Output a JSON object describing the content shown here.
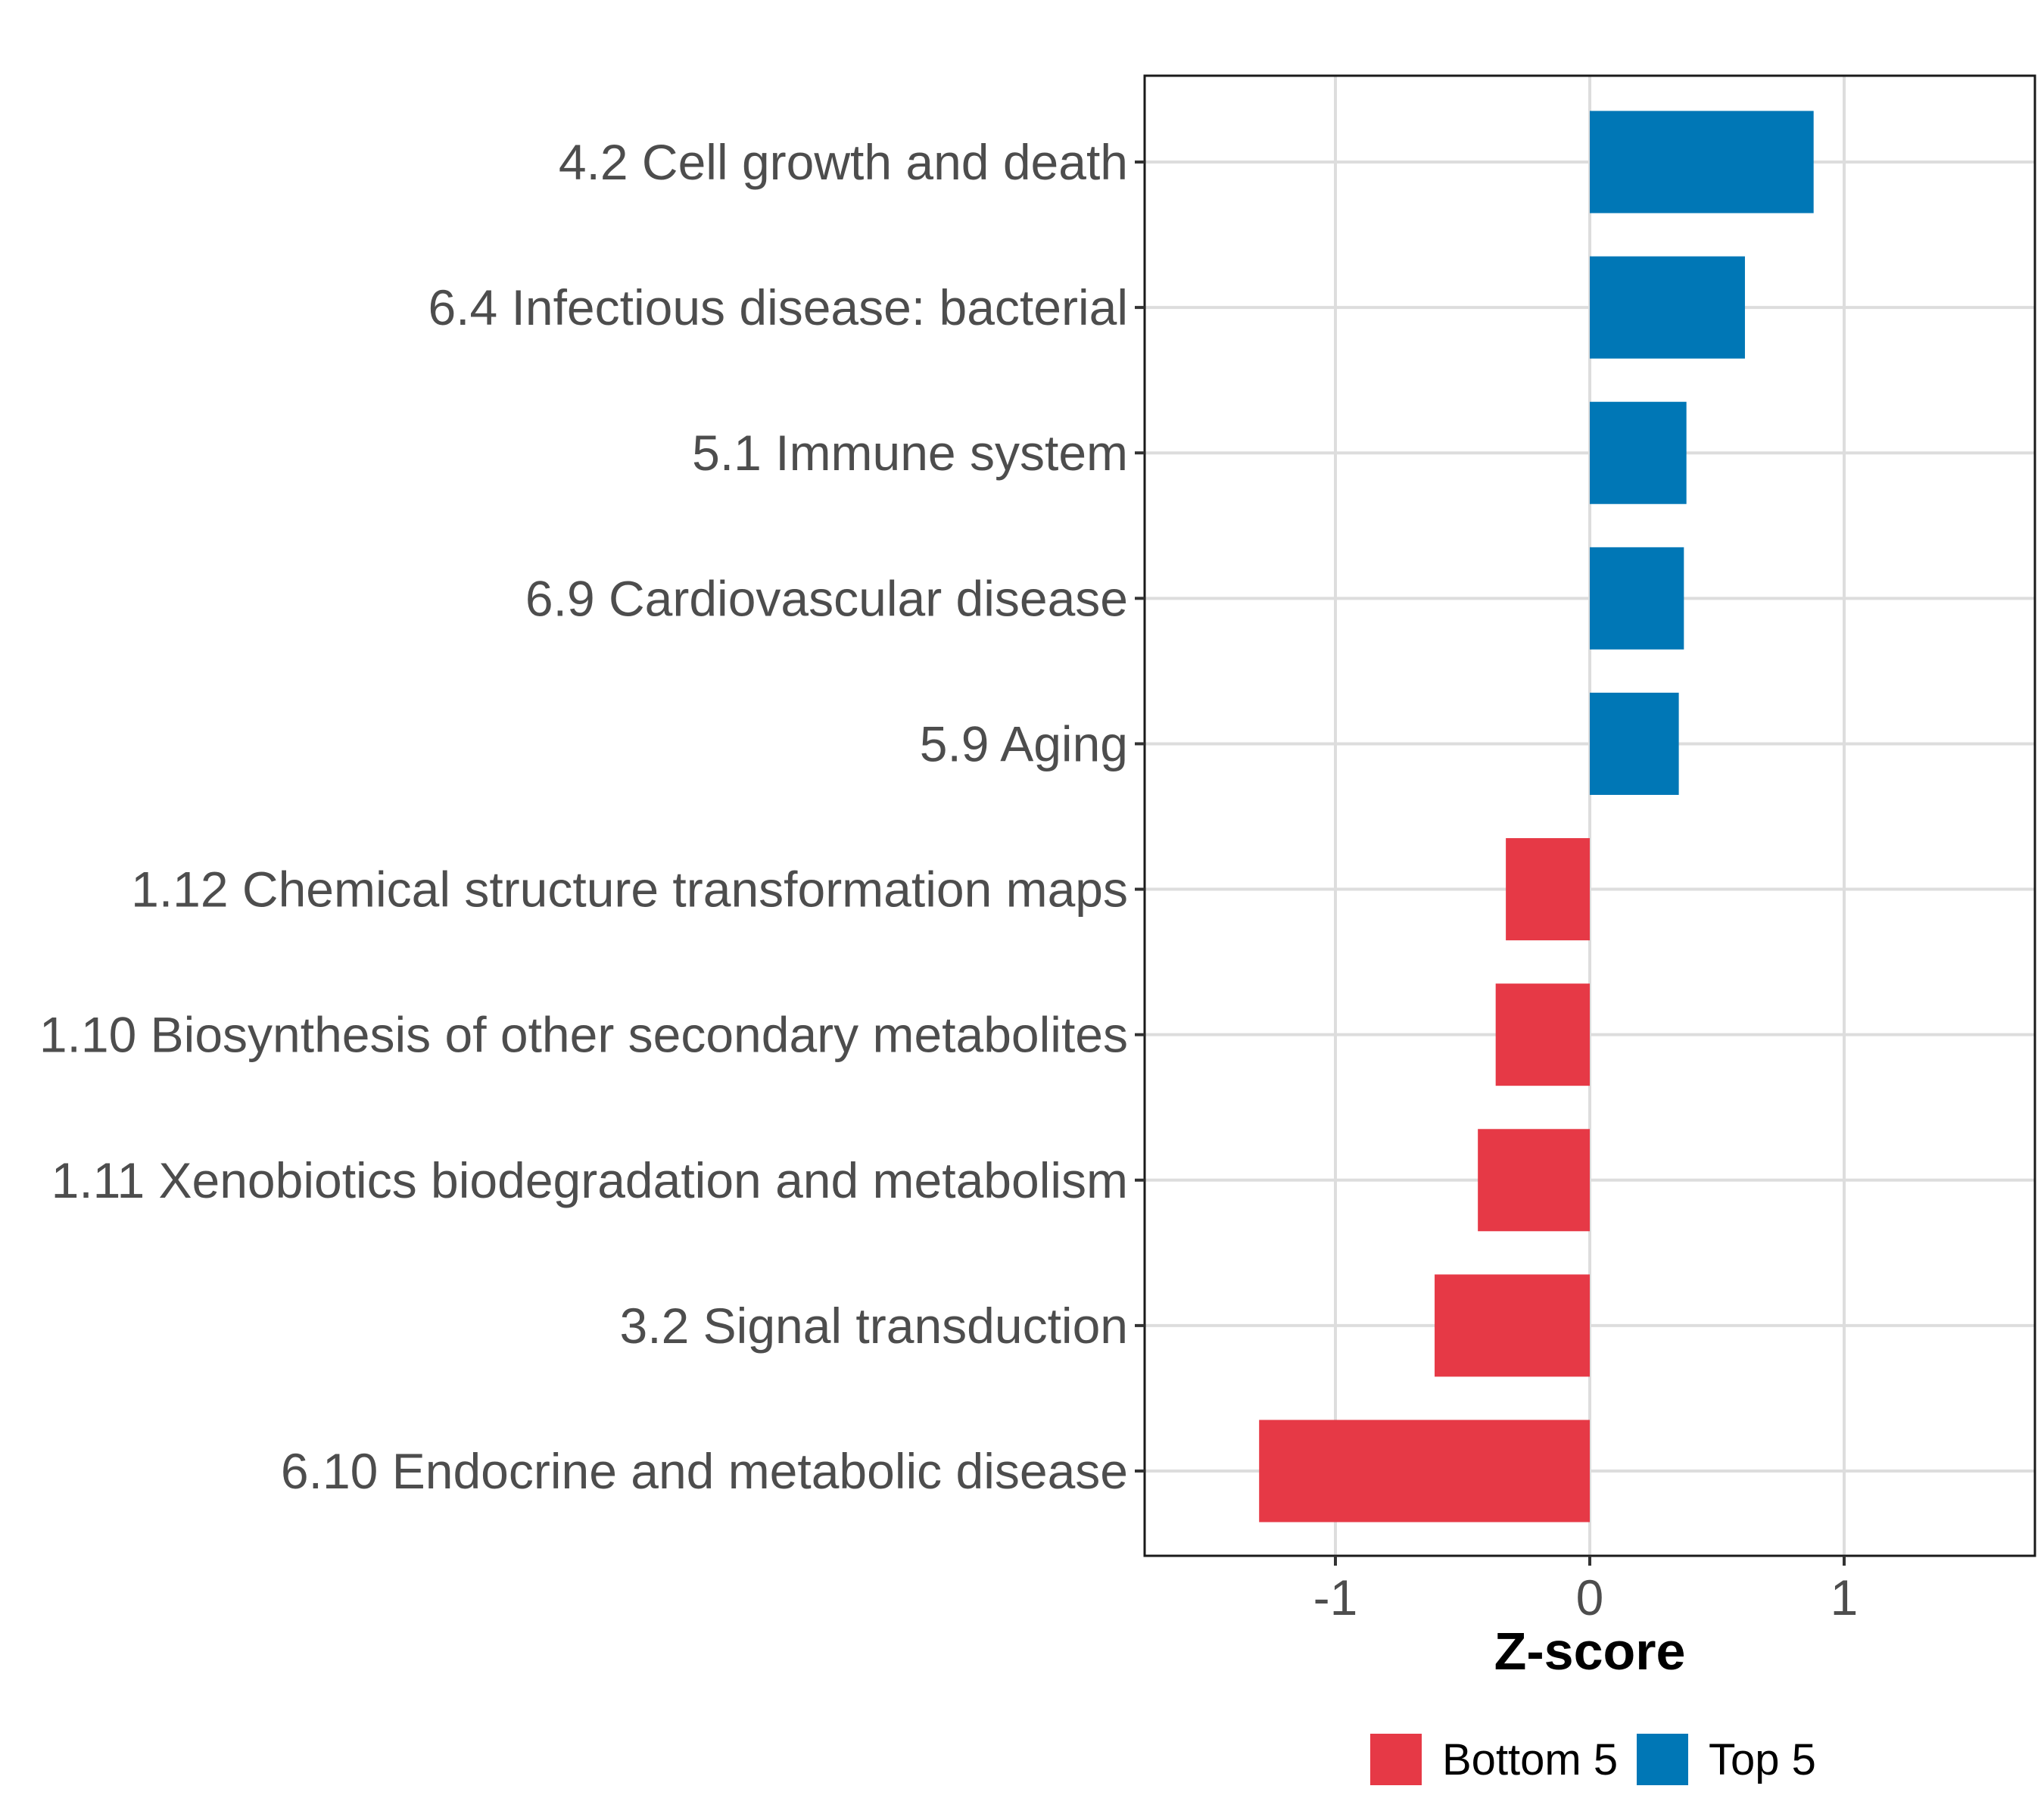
{
  "chart_data": {
    "type": "bar",
    "orientation": "horizontal",
    "categories": [
      "4.2 Cell growth and death",
      "6.4 Infectious disease: bacterial",
      "5.1 Immune system",
      "6.9 Cardiovascular disease",
      "5.9 Aging",
      "1.12 Chemical structure transformation maps",
      "1.10 Biosynthesis of other secondary metabolites",
      "1.11 Xenobiotics biodegradation and metabolism",
      "3.2 Signal transduction",
      "6.10 Endocrine and metabolic disease"
    ],
    "values": [
      0.88,
      0.61,
      0.38,
      0.37,
      0.35,
      -0.33,
      -0.37,
      -0.44,
      -0.61,
      -1.3
    ],
    "groups": [
      "Top 5",
      "Top 5",
      "Top 5",
      "Top 5",
      "Top 5",
      "Bottom 5",
      "Bottom 5",
      "Bottom 5",
      "Bottom 5",
      "Bottom 5"
    ],
    "xlabel": "Z-score",
    "ylabel": "",
    "xlim": [
      -1.75,
      1.75
    ],
    "xticks": [
      -1,
      0,
      1
    ],
    "xtick_labels": [
      "-1",
      "0",
      "1"
    ],
    "grid": true,
    "legend": {
      "position": "bottom",
      "entries": [
        {
          "label": "Bottom 5",
          "color": "#e63946"
        },
        {
          "label": "Top 5",
          "color": "#0077b6"
        }
      ]
    }
  }
}
